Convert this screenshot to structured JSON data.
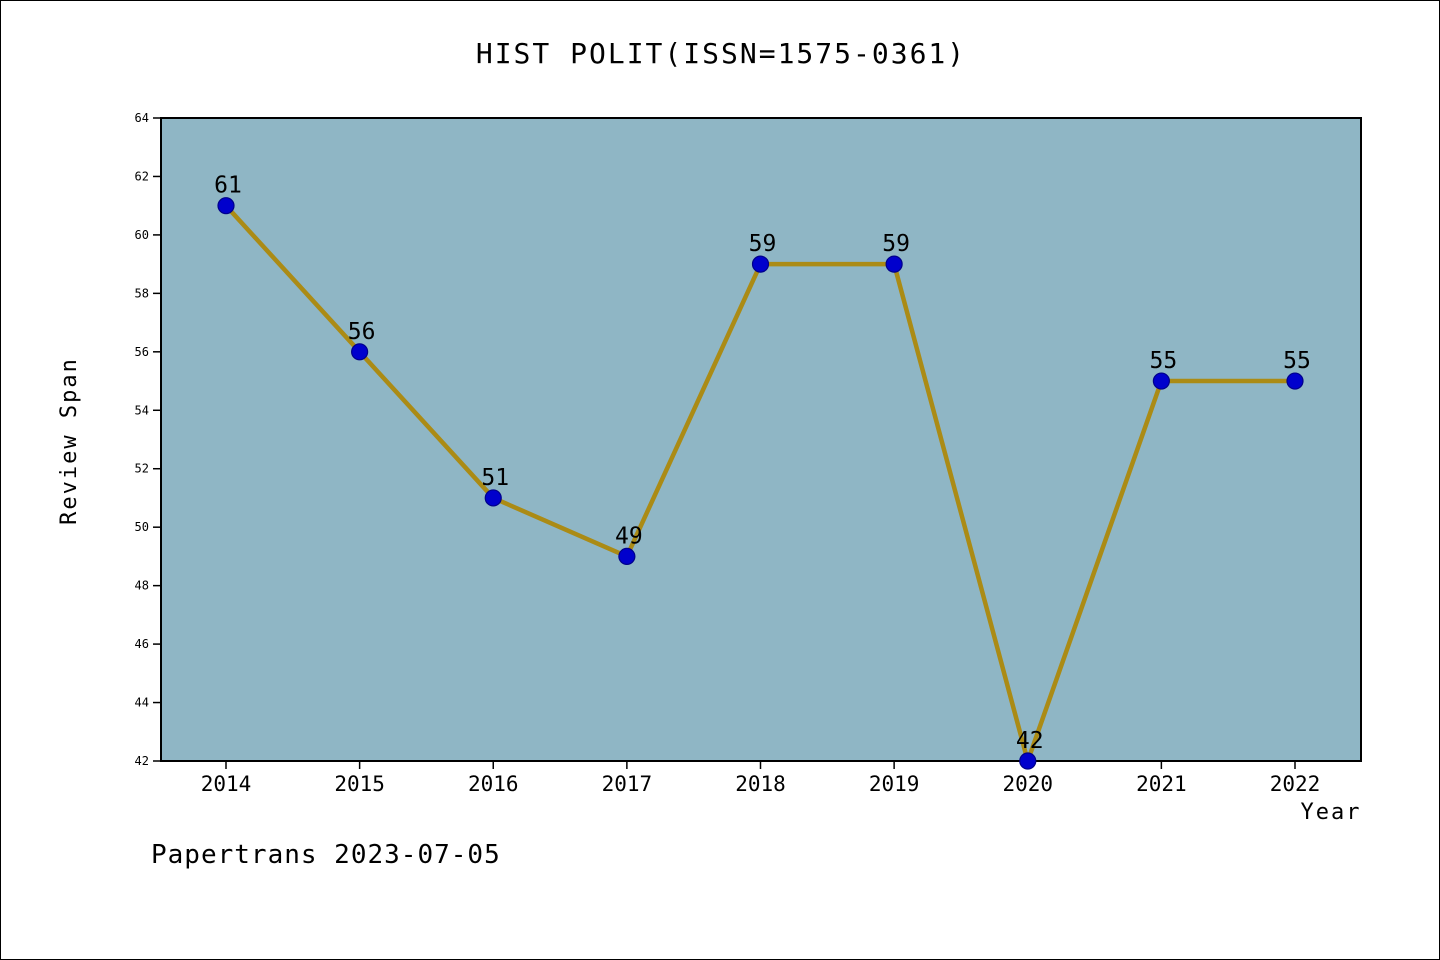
{
  "title": "HIST POLIT(ISSN=1575-0361)",
  "footer": "Papertrans 2023-07-05",
  "chart_data": {
    "type": "line",
    "title": "HIST POLIT(ISSN=1575-0361)",
    "xlabel": "Year",
    "ylabel": "Review Span",
    "categories": [
      2014,
      2015,
      2016,
      2017,
      2018,
      2019,
      2020,
      2021,
      2022
    ],
    "values": [
      61,
      56,
      51,
      49,
      59,
      59,
      42,
      55,
      55
    ],
    "ylim": [
      42,
      64
    ],
    "ytick_step": 2,
    "grid": false,
    "legend": "none",
    "colors": {
      "line": "#ab8b15",
      "marker": "#0000cd",
      "marker_edge": "#00008b",
      "plot_bg": "#8fb6c5",
      "axis": "#000000"
    }
  }
}
